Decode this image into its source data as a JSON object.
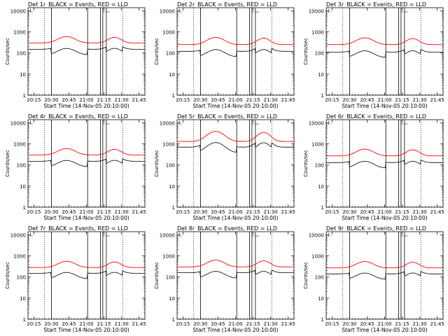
{
  "figure": {
    "shared": {
      "xlabel": "Start Time (14-Nov-05 20:10:00)",
      "ylabel": "Counts/sec",
      "legend_text": "BLACK = Events, RED = LLD",
      "x_ticks": [
        "20:15",
        "20:30",
        "20:45",
        "21:00",
        "21:15",
        "21:30",
        "21:45"
      ],
      "x_tick_minutes": [
        5,
        20,
        35,
        50,
        65,
        80,
        95
      ],
      "y_ticks": [
        "1",
        "10",
        "100",
        "1000",
        "10000"
      ],
      "y_tick_values": [
        1,
        10,
        100,
        1000,
        10000
      ],
      "xlim_minutes": [
        0,
        100
      ],
      "ylim": [
        1,
        14000
      ],
      "ylog": true,
      "dotted_vlines_minutes": [
        14,
        81
      ],
      "solid_vlines_minutes": [
        20,
        51,
        62,
        64,
        67
      ],
      "events_color": "#000000",
      "lld_color": "#ff0000"
    },
    "detectors": [
      {
        "title": "Det 1r",
        "events_level": 150,
        "lld_level": 300,
        "peak_factor": 2.0
      },
      {
        "title": "Det 2r",
        "events_level": 120,
        "lld_level": 250,
        "peak_factor": 2.2
      },
      {
        "title": "Det 3r",
        "events_level": 110,
        "lld_level": 250,
        "peak_factor": 2.1
      },
      {
        "title": "Det 4r",
        "events_level": 150,
        "lld_level": 300,
        "peak_factor": 2.0
      },
      {
        "title": "Det 5r",
        "events_level": 700,
        "lld_level": 1300,
        "peak_factor": 3.0
      },
      {
        "title": "Det 6r",
        "events_level": 130,
        "lld_level": 270,
        "peak_factor": 2.1
      },
      {
        "title": "Det 7r",
        "events_level": 150,
        "lld_level": 280,
        "peak_factor": 2.0
      },
      {
        "title": "Det 8r",
        "events_level": 160,
        "lld_level": 300,
        "peak_factor": 2.1
      },
      {
        "title": "Det 9r",
        "events_level": 140,
        "lld_level": 270,
        "peak_factor": 2.0
      }
    ]
  },
  "chart_data": [
    {
      "type": "line",
      "title": "Det 1r BLACK = Events, RED = LLD",
      "xlabel": "Start Time (14-Nov-05 20:10:00)",
      "ylabel": "Counts/sec",
      "ylim": [
        1,
        14000
      ],
      "series": [
        {
          "name": "Events",
          "baseline_value": 150
        },
        {
          "name": "LLD",
          "baseline_value": 300
        }
      ]
    },
    {
      "type": "line",
      "title": "Det 2r BLACK = Events, RED = LLD",
      "xlabel": "Start Time (14-Nov-05 20:10:00)",
      "ylabel": "Counts/sec",
      "ylim": [
        1,
        14000
      ],
      "series": [
        {
          "name": "Events",
          "baseline_value": 120
        },
        {
          "name": "LLD",
          "baseline_value": 250
        }
      ]
    },
    {
      "type": "line",
      "title": "Det 3r BLACK = Events, RED = LLD",
      "xlabel": "Start Time (14-Nov-05 20:10:00)",
      "ylabel": "Counts/sec",
      "ylim": [
        1,
        14000
      ],
      "series": [
        {
          "name": "Events",
          "baseline_value": 110
        },
        {
          "name": "LLD",
          "baseline_value": 250
        }
      ]
    },
    {
      "type": "line",
      "title": "Det 4r BLACK = Events, RED = LLD",
      "xlabel": "Start Time (14-Nov-05 20:10:00)",
      "ylabel": "Counts/sec",
      "ylim": [
        1,
        14000
      ],
      "series": [
        {
          "name": "Events",
          "baseline_value": 150
        },
        {
          "name": "LLD",
          "baseline_value": 300
        }
      ]
    },
    {
      "type": "line",
      "title": "Det 5r BLACK = Events, RED = LLD",
      "xlabel": "Start Time (14-Nov-05 20:10:00)",
      "ylabel": "Counts/sec",
      "ylim": [
        1,
        14000
      ],
      "series": [
        {
          "name": "Events",
          "baseline_value": 700
        },
        {
          "name": "LLD",
          "baseline_value": 1300
        }
      ]
    },
    {
      "type": "line",
      "title": "Det 6r BLACK = Events, RED = LLD",
      "xlabel": "Start Time (14-Nov-05 20:10:00)",
      "ylabel": "Counts/sec",
      "ylim": [
        1,
        14000
      ],
      "series": [
        {
          "name": "Events",
          "baseline_value": 130
        },
        {
          "name": "LLD",
          "baseline_value": 270
        }
      ]
    },
    {
      "type": "line",
      "title": "Det 7r BLACK = Events, RED = LLD",
      "xlabel": "Start Time (14-Nov-05 20:10:00)",
      "ylabel": "Counts/sec",
      "ylim": [
        1,
        14000
      ],
      "series": [
        {
          "name": "Events",
          "baseline_value": 150
        },
        {
          "name": "LLD",
          "baseline_value": 280
        }
      ]
    },
    {
      "type": "line",
      "title": "Det 8r BLACK = Events, RED = LLD",
      "xlabel": "Start Time (14-Nov-05 20:10:00)",
      "ylabel": "Counts/sec",
      "ylim": [
        1,
        14000
      ],
      "series": [
        {
          "name": "Events",
          "baseline_value": 160
        },
        {
          "name": "LLD",
          "baseline_value": 300
        }
      ]
    },
    {
      "type": "line",
      "title": "Det 9r BLACK = Events, RED = LLD",
      "xlabel": "Start Time (14-Nov-05 20:10:00)",
      "ylabel": "Counts/sec",
      "ylim": [
        1,
        14000
      ],
      "series": [
        {
          "name": "Events",
          "baseline_value": 140
        },
        {
          "name": "LLD",
          "baseline_value": 270
        }
      ]
    }
  ]
}
